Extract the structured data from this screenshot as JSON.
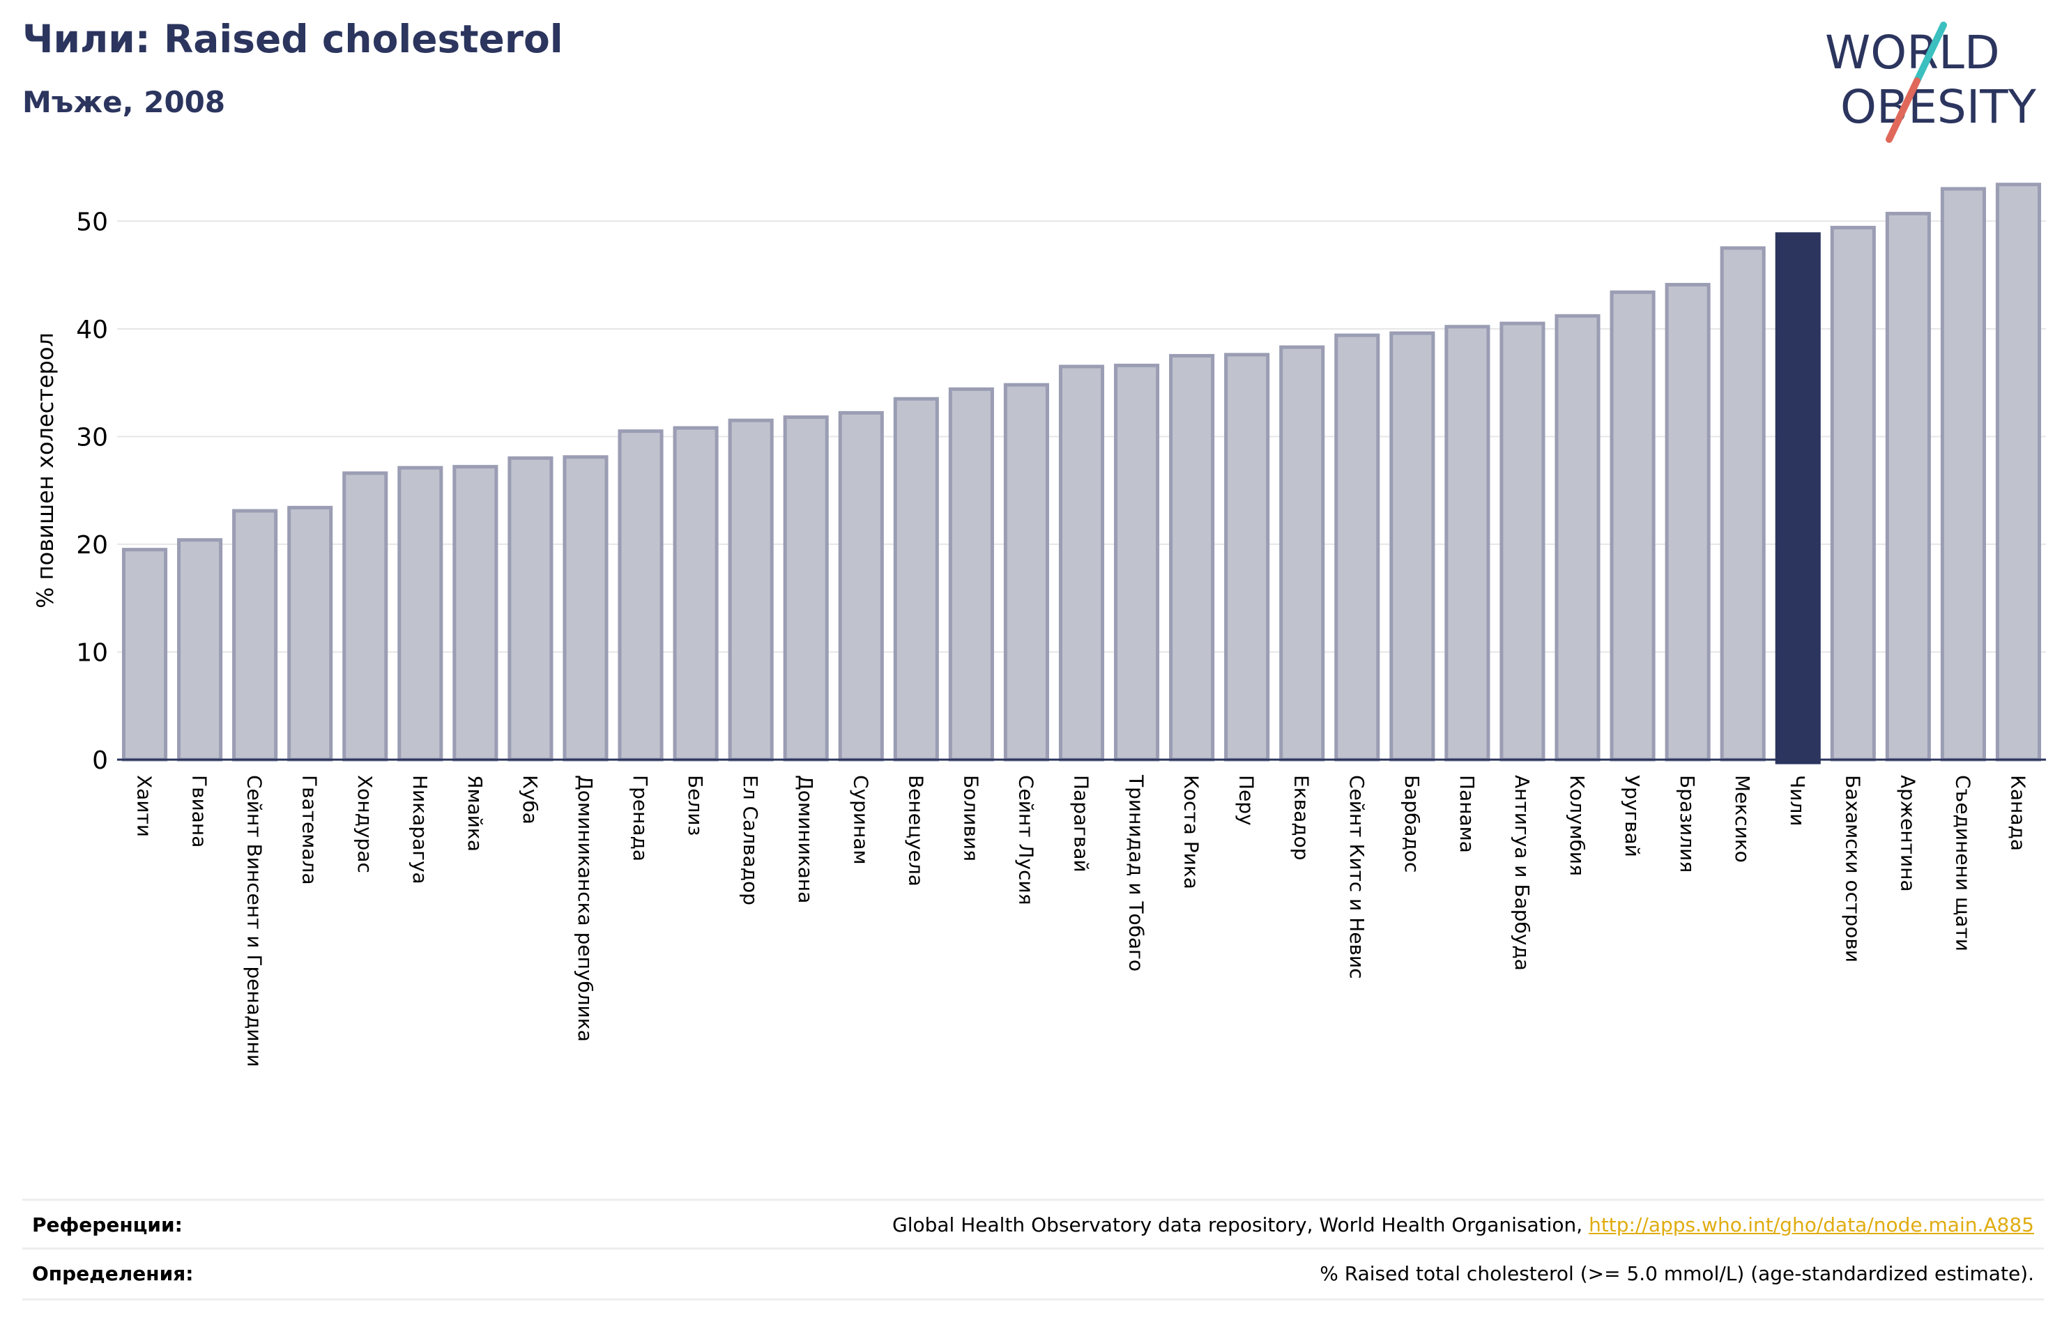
{
  "header": {
    "title": "Чили: Raised cholesterol",
    "subtitle": "Мъже, 2008"
  },
  "logo": {
    "line1": "WORLD",
    "line2": "OBESITY"
  },
  "colors": {
    "bar_fill": "#c0c2ce",
    "bar_stroke": "#9a9db3",
    "highlight": "#2b355e",
    "grid": "#e6e6e6",
    "title": "#2b355e",
    "link": "#e0ac10",
    "logo_teal": "#3bbfbf",
    "logo_red": "#e0685a"
  },
  "chart_data": {
    "type": "bar",
    "title": "Чили: Raised cholesterol",
    "subtitle": "Мъже, 2008",
    "ylabel": "% повишен холестерол",
    "xlabel": "",
    "ylim": [
      0,
      55
    ],
    "yticks": [
      0,
      10,
      20,
      30,
      40,
      50
    ],
    "grid": true,
    "highlight_category": "Чили",
    "categories": [
      "Хаити",
      "Гвиана",
      "Сейнт Винсент и Гренадини",
      "Гватемала",
      "Хондурас",
      "Никарагуа",
      "Ямайка",
      "Куба",
      "Доминиканска република",
      "Гренада",
      "Белиз",
      "Ел Салвадор",
      "Доминикана",
      "Суринам",
      "Венецуела",
      "Боливия",
      "Сейнт Лусия",
      "Парагвай",
      "Тринидад и Тобаго",
      "Коста Рика",
      "Перу",
      "Еквадор",
      "Сейнт Китс и Невис",
      "Барбадос",
      "Панама",
      "Антигуа и Барбуда",
      "Колумбия",
      "Уругвай",
      "Бразилия",
      "Мексико",
      "Чили",
      "Бахамски острови",
      "Аржентина",
      "Съединени щати",
      "Канада"
    ],
    "values": [
      19.5,
      20.4,
      23.1,
      23.4,
      26.6,
      27.1,
      27.2,
      28.0,
      28.1,
      30.5,
      30.8,
      31.5,
      31.8,
      32.2,
      33.5,
      34.4,
      34.8,
      36.5,
      36.6,
      37.5,
      37.6,
      38.3,
      39.4,
      39.6,
      40.2,
      40.5,
      41.2,
      43.4,
      44.1,
      47.5,
      48.8,
      49.4,
      50.7,
      53.0,
      53.4
    ]
  },
  "references": {
    "sources_label": "Референции:",
    "sources_text": "Global Health Observatory data repository, World Health Organisation, ",
    "sources_link": "http://apps.who.int/gho/data/node.main.A885",
    "definitions_label": "Определения:",
    "definitions_text": "% Raised total cholesterol (>= 5.0 mmol/L) (age-standardized estimate)."
  }
}
